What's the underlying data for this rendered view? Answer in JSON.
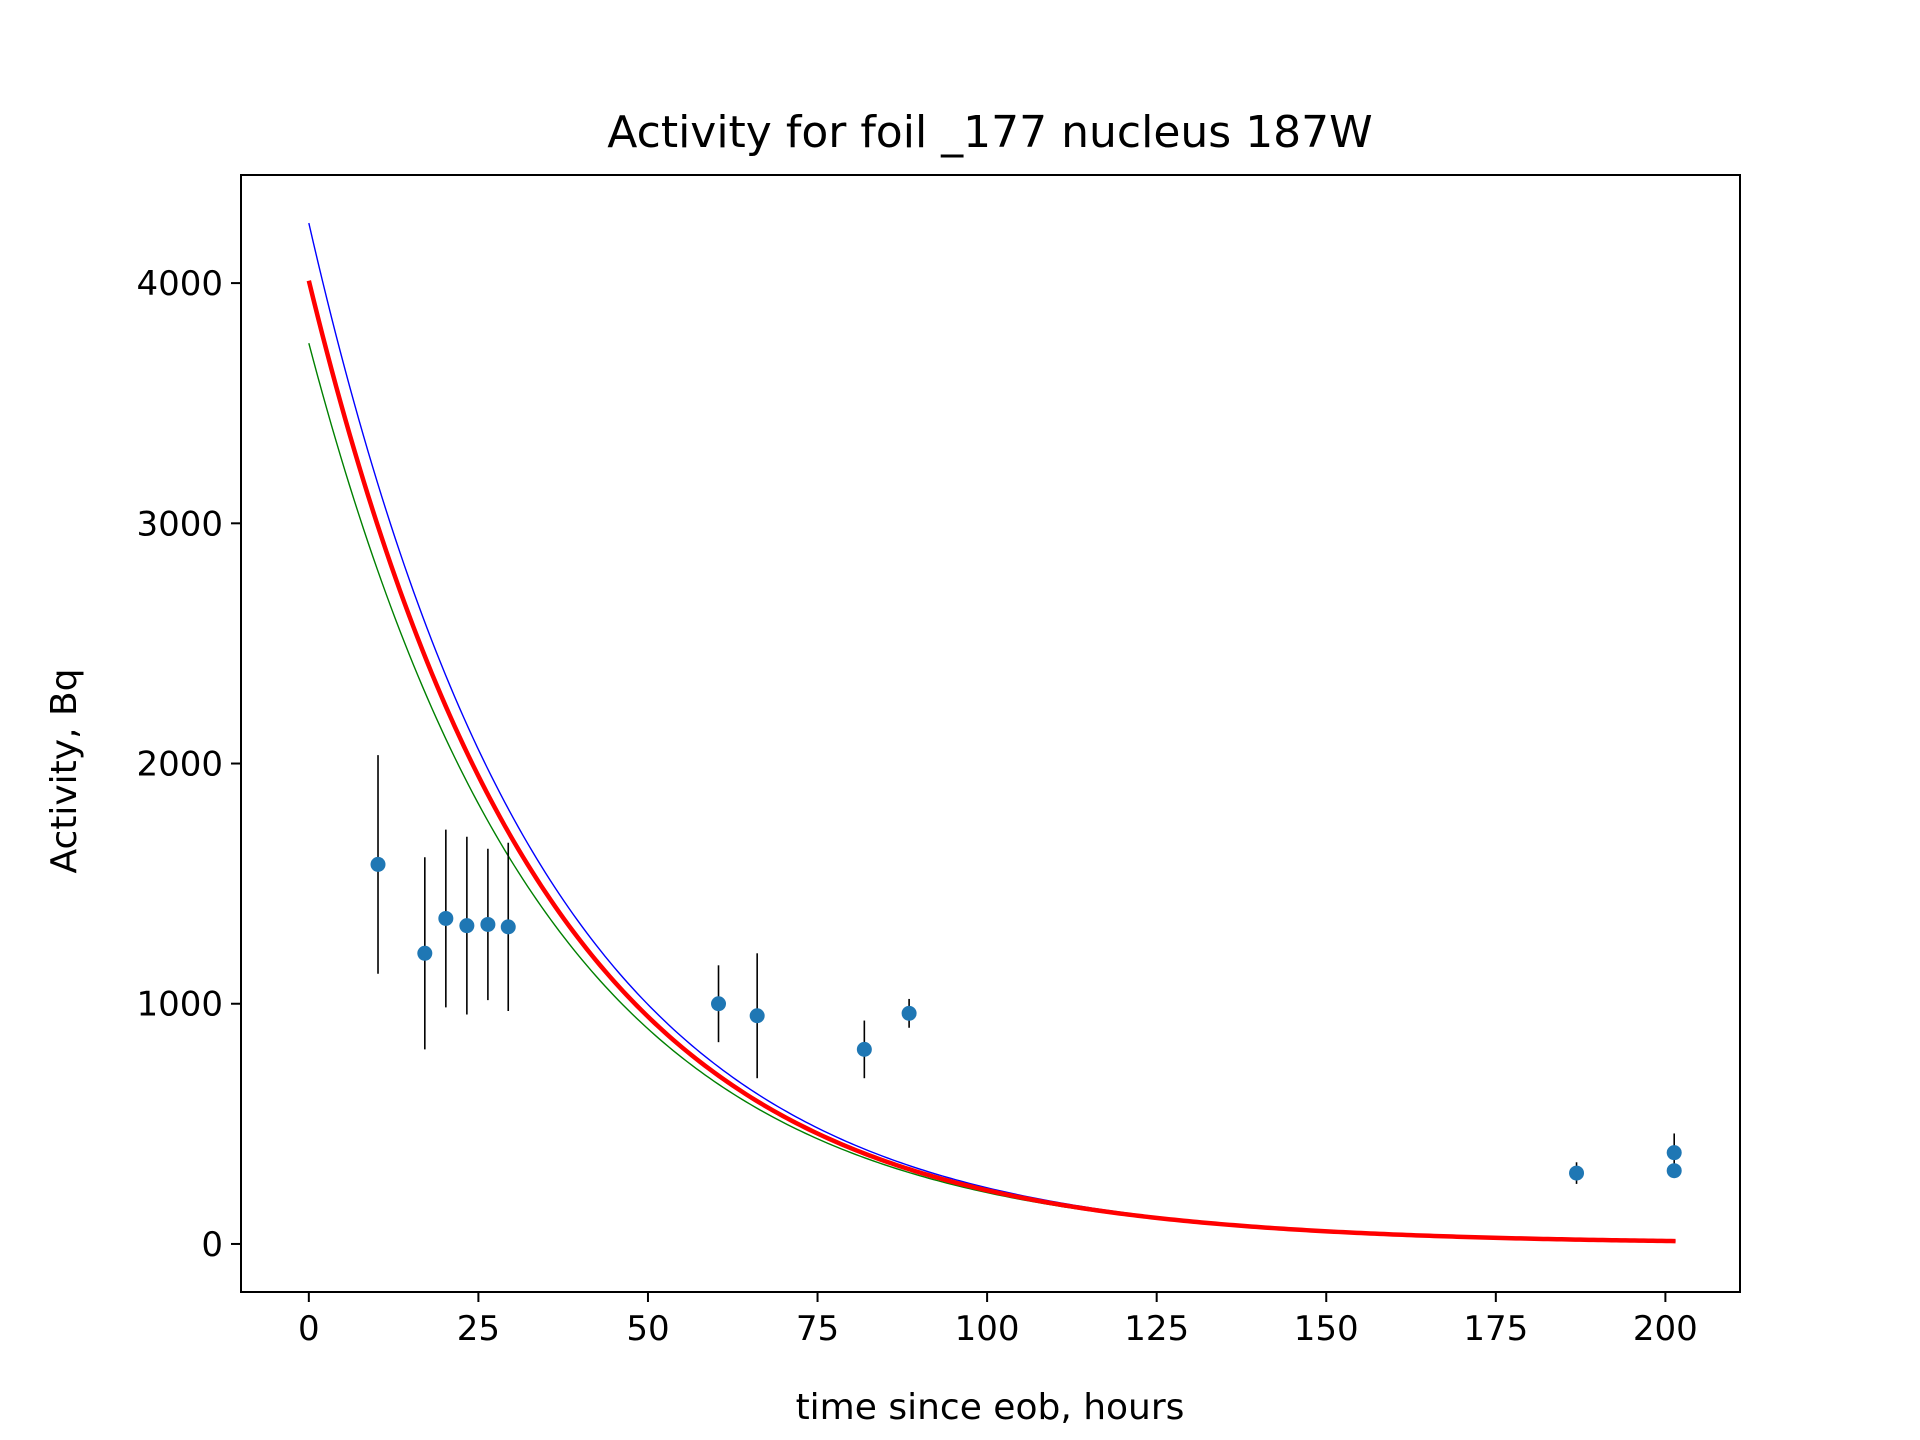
{
  "chart_data": {
    "type": "scatter",
    "title": "Activity for foil _177 nucleus 187W",
    "xlabel": "time since eob, hours",
    "ylabel": "Activity, Bq",
    "xlim": [
      -10,
      211
    ],
    "ylim": [
      -200,
      4450
    ],
    "xticks": [
      0,
      25,
      50,
      75,
      100,
      125,
      150,
      175,
      200
    ],
    "yticks": [
      0,
      1000,
      2000,
      3000,
      4000
    ],
    "grid": false,
    "legend": "none",
    "colors": {
      "points": "#1f77b4",
      "errorbars": "#000000",
      "fit": "#ff0000",
      "upper": "#0000ff",
      "lower": "#008000"
    },
    "points": [
      {
        "x": 10.2,
        "y": 1580,
        "err": 455
      },
      {
        "x": 17.1,
        "y": 1210,
        "err": 400
      },
      {
        "x": 20.2,
        "y": 1355,
        "err": 370
      },
      {
        "x": 23.3,
        "y": 1325,
        "err": 370
      },
      {
        "x": 26.4,
        "y": 1330,
        "err": 315
      },
      {
        "x": 29.4,
        "y": 1320,
        "err": 350
      },
      {
        "x": 60.4,
        "y": 1000,
        "err": 160
      },
      {
        "x": 66.1,
        "y": 950,
        "err": 260
      },
      {
        "x": 81.9,
        "y": 810,
        "err": 120
      },
      {
        "x": 88.5,
        "y": 960,
        "err": 60
      },
      {
        "x": 186.9,
        "y": 295,
        "err": 45
      },
      {
        "x": 201.3,
        "y": 380,
        "err": 80
      },
      {
        "x": 201.3,
        "y": 305,
        "err": 0
      }
    ],
    "curves": [
      {
        "role": "upper",
        "A0": 4250,
        "half_life": 23.9,
        "t_max": 201.5
      },
      {
        "role": "lower",
        "A0": 3750,
        "half_life": 24.2,
        "t_max": 201.5
      },
      {
        "role": "fit",
        "A0": 4010,
        "half_life": 24.0,
        "t_max": 201.5
      }
    ]
  }
}
